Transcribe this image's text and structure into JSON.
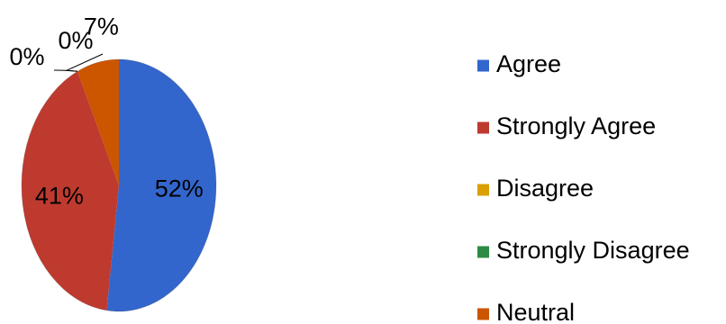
{
  "chart_data": {
    "type": "pie",
    "title": "",
    "categories": [
      "Agree",
      "Strongly Agree",
      "Disagree",
      "Strongly Disagree",
      "Neutral"
    ],
    "values": [
      52,
      41,
      0,
      0,
      7
    ],
    "data_labels": [
      "52%",
      "41%",
      "0%",
      "0%",
      "7%"
    ],
    "colors": [
      "#3366CC",
      "#BE3A2F",
      "#D9A000",
      "#2E8B46",
      "#CC5500"
    ],
    "legend_position": "right"
  }
}
